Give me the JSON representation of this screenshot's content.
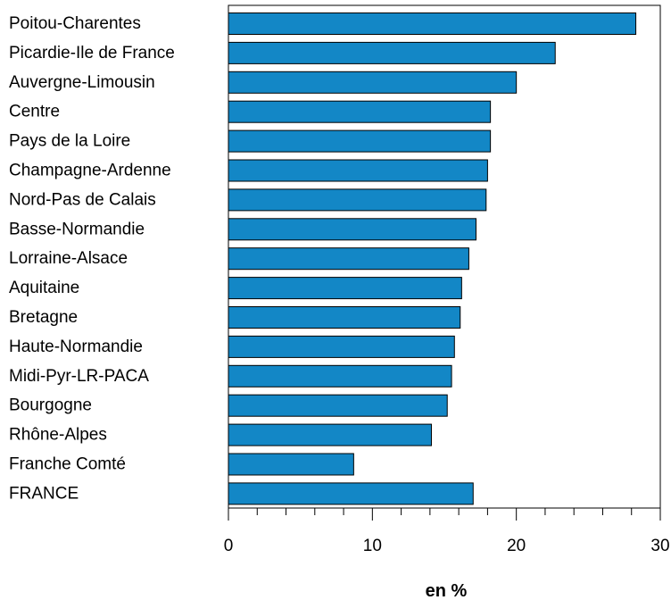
{
  "chart_data": {
    "type": "bar",
    "orientation": "horizontal",
    "categories": [
      "Poitou-Charentes",
      "Picardie-Ile de France",
      "Auvergne-Limousin",
      "Centre",
      "Pays de la Loire",
      "Champagne-Ardenne",
      "Nord-Pas de Calais",
      "Basse-Normandie",
      "Lorraine-Alsace",
      "Aquitaine",
      "Bretagne",
      "Haute-Normandie",
      "Midi-Pyr-LR-PACA",
      "Bourgogne",
      "Rhône-Alpes",
      "Franche Comté",
      "FRANCE"
    ],
    "values": [
      28.3,
      22.7,
      20.0,
      18.2,
      18.2,
      18.0,
      17.9,
      17.2,
      16.7,
      16.2,
      16.1,
      15.7,
      15.5,
      15.2,
      14.1,
      8.7,
      17.0
    ],
    "xlabel": "en %",
    "ylabel": "",
    "xlim": [
      0,
      30
    ],
    "xticks": [
      0,
      10,
      20,
      30
    ],
    "minor_tick_step": 2,
    "grid": false,
    "legend": "none",
    "colors": {
      "bar_fill": "#1387c6",
      "bar_stroke": "#000000",
      "frame": "#000000"
    }
  }
}
